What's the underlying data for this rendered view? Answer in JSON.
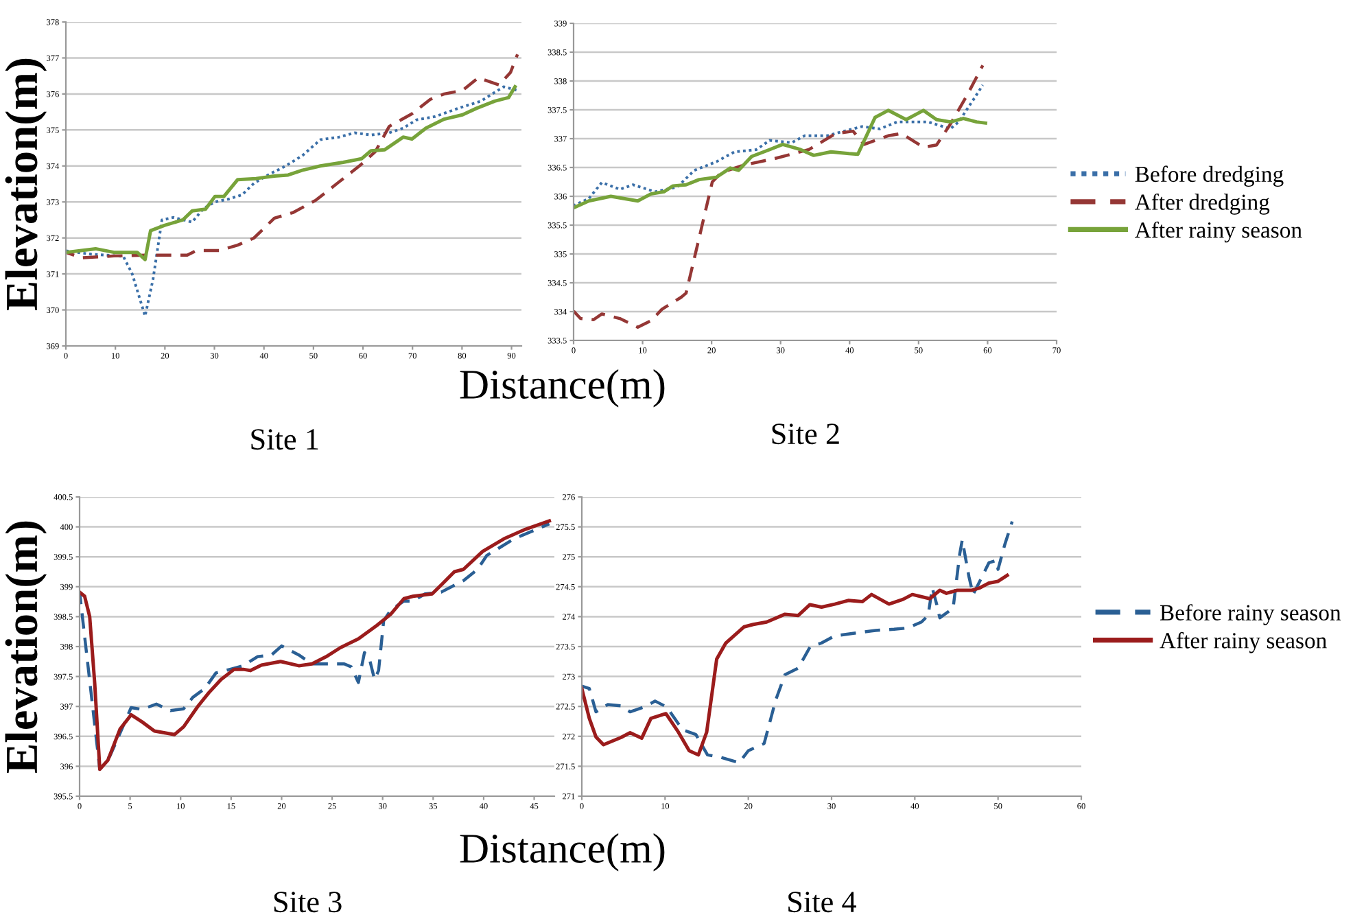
{
  "chart_data": [
    {
      "type": "line",
      "title": "Site 1",
      "ylabel": "Elevation(m)",
      "xlabel": "Distance(m)",
      "xlim": [
        0,
        92
      ],
      "xticks": [
        0,
        10,
        20,
        30,
        40,
        50,
        60,
        70,
        80,
        90
      ],
      "ylim": [
        369,
        378
      ],
      "yticks": [
        369,
        370,
        371,
        372,
        373,
        374,
        375,
        376,
        377,
        378
      ],
      "grid": "y",
      "legend": false,
      "series": [
        {
          "color": "#3a6fa8",
          "line_style": "dotted",
          "x": [
            0,
            5.1,
            11.6,
            13.4,
            16.0,
            17.6,
            19.4,
            21.8,
            25.5,
            27.8,
            30.1,
            32.9,
            35.6,
            38.0,
            41.2,
            44.0,
            47.7,
            51.4,
            55.1,
            58.3,
            61.6,
            65.3,
            68.1,
            70.8,
            74.5,
            79.2,
            83.8,
            88.4,
            91.2
          ],
          "values": [
            371.64,
            371.55,
            371.49,
            371.0,
            369.83,
            370.85,
            372.5,
            372.57,
            372.44,
            372.82,
            373.0,
            373.08,
            373.2,
            373.52,
            373.78,
            373.97,
            374.28,
            374.73,
            374.8,
            374.92,
            374.86,
            374.92,
            375.05,
            375.28,
            375.37,
            375.6,
            375.8,
            376.2,
            376.1
          ]
        },
        {
          "color": "#953735",
          "line_style": "dashed",
          "x": [
            0,
            3.2,
            9.7,
            16.2,
            24.5,
            26.4,
            31.0,
            34.7,
            38.0,
            42.1,
            45.8,
            50.5,
            55.1,
            59.7,
            62.5,
            65.3,
            69.9,
            73.6,
            76.4,
            80.1,
            83.3,
            87.5,
            89.8,
            91.2
          ],
          "values": [
            371.6,
            371.45,
            371.5,
            371.52,
            371.52,
            371.65,
            371.65,
            371.8,
            372.0,
            372.55,
            372.7,
            373.05,
            373.55,
            374.05,
            374.4,
            375.1,
            375.45,
            375.85,
            376.0,
            376.1,
            376.45,
            376.25,
            376.6,
            377.1
          ]
        },
        {
          "color": "#77a33a",
          "line_style": "solid",
          "x": [
            0,
            6.0,
            9.7,
            14.4,
            16.0,
            17.1,
            19.9,
            23.6,
            25.5,
            28.2,
            30.1,
            31.9,
            34.7,
            38.4,
            42.1,
            44.9,
            47.7,
            51.4,
            56.0,
            59.7,
            61.6,
            64.4,
            68.1,
            69.9,
            72.7,
            76.4,
            80.1,
            82.9,
            86.6,
            89.4,
            90.7
          ],
          "values": [
            371.6,
            371.7,
            371.6,
            371.6,
            371.4,
            372.2,
            372.35,
            372.5,
            372.75,
            372.8,
            373.15,
            373.15,
            373.62,
            373.65,
            373.72,
            373.75,
            373.88,
            374.0,
            374.1,
            374.2,
            374.42,
            374.45,
            374.8,
            374.75,
            375.05,
            375.3,
            375.42,
            375.6,
            375.8,
            375.9,
            376.2
          ]
        }
      ]
    },
    {
      "type": "line",
      "title": "Site 2",
      "xlim": [
        0,
        70
      ],
      "xticks": [
        0,
        10,
        20,
        30,
        40,
        50,
        60,
        70
      ],
      "ylim": [
        333.5,
        339
      ],
      "yticks": [
        333.5,
        334,
        334.5,
        335,
        335.5,
        336,
        336.5,
        337,
        337.5,
        338,
        338.5,
        339
      ],
      "grid": "y",
      "legend": "right",
      "series": [
        {
          "name": "Before dredging",
          "color": "#3a6fa8",
          "line_style": "dotted",
          "x": [
            0,
            2.2,
            4.1,
            6.7,
            8.6,
            11.8,
            15.0,
            17.5,
            20.7,
            23.3,
            26.5,
            28.4,
            31.6,
            33.5,
            36.7,
            39.2,
            41.8,
            44.4,
            46.9,
            51.4,
            54.6,
            55.8,
            57.8,
            59.3
          ],
          "values": [
            335.84,
            335.96,
            336.24,
            336.12,
            336.2,
            336.08,
            336.16,
            336.45,
            336.6,
            336.77,
            336.81,
            336.97,
            336.93,
            337.05,
            337.05,
            337.13,
            337.21,
            337.17,
            337.29,
            337.29,
            337.17,
            337.29,
            337.65,
            337.93
          ]
        },
        {
          "name": "After dredging",
          "color": "#953735",
          "line_style": "dashed",
          "x": [
            0,
            1,
            2.9,
            4.1,
            6.7,
            9.3,
            11.2,
            12.8,
            15.6,
            16.3,
            18.2,
            20.1,
            21.4,
            24.6,
            29.0,
            34.1,
            38.0,
            40.5,
            42.1,
            45.6,
            47.5,
            50.7,
            52.6,
            54.6,
            57.1,
            59.3
          ],
          "values": [
            334.01,
            333.88,
            333.86,
            333.96,
            333.88,
            333.73,
            333.84,
            334.04,
            334.25,
            334.32,
            335.28,
            336.25,
            336.41,
            336.54,
            336.65,
            336.81,
            337.09,
            337.13,
            336.9,
            337.05,
            337.09,
            336.85,
            336.89,
            337.25,
            337.77,
            338.27
          ]
        },
        {
          "name": "After rainy season",
          "color": "#77a33a",
          "line_style": "solid",
          "x": [
            0,
            2.2,
            5.4,
            9.3,
            11.2,
            13.1,
            14.4,
            16.3,
            18.2,
            20.7,
            22.7,
            23.9,
            25.8,
            28.4,
            30.3,
            32.9,
            34.8,
            37.3,
            39.9,
            41.2,
            43.7,
            45.6,
            48.2,
            50.7,
            52.6,
            54.6,
            56.5,
            58.4,
            59.7
          ],
          "values": [
            335.8,
            335.92,
            336.0,
            335.92,
            336.04,
            336.08,
            336.18,
            336.2,
            336.29,
            336.33,
            336.49,
            336.45,
            336.69,
            336.81,
            336.9,
            336.81,
            336.71,
            336.77,
            336.74,
            336.73,
            337.37,
            337.49,
            337.33,
            337.49,
            337.33,
            337.29,
            337.35,
            337.29,
            337.27
          ]
        }
      ]
    },
    {
      "type": "line",
      "title": "Site 3",
      "ylabel": "Elevation(m)",
      "xlabel": "Distance(m)",
      "xlim": [
        0,
        47
      ],
      "xticks": [
        0,
        5,
        10,
        15,
        20,
        25,
        30,
        35,
        40,
        45
      ],
      "ylim": [
        395.5,
        400.5
      ],
      "yticks": [
        395.5,
        396,
        396.5,
        397,
        397.5,
        398,
        398.5,
        399,
        399.5,
        400,
        400.5
      ],
      "grid": "y",
      "legend": false,
      "series": [
        {
          "color": "#2a5f94",
          "line_style": "dashed",
          "x": [
            0,
            2,
            3,
            4,
            5.1,
            6.2,
            7.6,
            9,
            10.3,
            11.2,
            12.4,
            13.5,
            14.9,
            16.2,
            17.6,
            19,
            20,
            21.7,
            23,
            24.4,
            26.2,
            26.9,
            27.6,
            28.2,
            28.7,
            29.2,
            29.6,
            30.1,
            30.8,
            32.1,
            33,
            34.2,
            35.8,
            36.7,
            38,
            39.4,
            40.3,
            43,
            46.5
          ],
          "values": [
            398.91,
            395.95,
            396.17,
            396.55,
            396.98,
            396.95,
            397.04,
            396.93,
            396.96,
            397.15,
            397.3,
            397.56,
            397.62,
            397.68,
            397.83,
            397.86,
            398.01,
            397.86,
            397.71,
            397.71,
            397.71,
            397.66,
            397.4,
            397.9,
            397.79,
            397.45,
            397.6,
            398.43,
            398.61,
            398.76,
            398.76,
            398.88,
            398.91,
            398.99,
            399.1,
            399.29,
            399.52,
            399.8,
            400.05
          ]
        },
        {
          "color": "#9b1c1c",
          "line_style": "solid",
          "x": [
            0,
            0.5,
            1,
            1.5,
            2,
            2.8,
            4,
            5.1,
            6.2,
            7.4,
            9.4,
            10.3,
            11.7,
            12.8,
            14,
            15.3,
            16.2,
            16.9,
            18,
            19.9,
            21.7,
            23,
            24.4,
            25.8,
            27.6,
            29.4,
            30.8,
            32.1,
            33,
            34.9,
            35.8,
            37.1,
            38,
            39.9,
            42,
            44,
            46.5
          ],
          "values": [
            398.91,
            398.84,
            398.5,
            397.38,
            395.95,
            396.1,
            396.62,
            396.86,
            396.74,
            396.59,
            396.53,
            396.66,
            397.0,
            397.23,
            397.45,
            397.62,
            397.62,
            397.6,
            397.69,
            397.75,
            397.68,
            397.71,
            397.83,
            397.98,
            398.13,
            398.35,
            398.54,
            398.8,
            398.84,
            398.88,
            399.03,
            399.25,
            399.29,
            399.59,
            399.8,
            399.95,
            400.1
          ]
        }
      ]
    },
    {
      "type": "line",
      "title": "Site 4",
      "xlim": [
        0,
        60
      ],
      "xticks": [
        0,
        10,
        20,
        30,
        40,
        50,
        60
      ],
      "ylim": [
        271,
        276
      ],
      "yticks": [
        271,
        271.5,
        272,
        272.5,
        273,
        273.5,
        274,
        274.5,
        275,
        275.5,
        276
      ],
      "grid": "y",
      "legend": "right",
      "series": [
        {
          "name": "Before rainy season",
          "color": "#2a5f94",
          "line_style": "dashed",
          "x": [
            0,
            0.9,
            1.7,
            3.1,
            4.7,
            5.8,
            7.5,
            8.8,
            10.2,
            12.1,
            13.7,
            15.1,
            16.7,
            18.9,
            20,
            21.9,
            23.3,
            24.4,
            26,
            27.4,
            28.8,
            30.4,
            32.6,
            35.3,
            37.5,
            39.1,
            40.8,
            41.6,
            42.1,
            42.7,
            43,
            44.6,
            45.4,
            45.7,
            46.5,
            47,
            47.8,
            48.9,
            49.8,
            50,
            50.8,
            51.7
          ],
          "values": [
            272.84,
            272.8,
            272.41,
            272.53,
            272.51,
            272.41,
            272.49,
            272.59,
            272.49,
            272.11,
            272.03,
            271.69,
            271.65,
            271.56,
            271.76,
            271.88,
            272.61,
            273.03,
            273.14,
            273.49,
            273.56,
            273.68,
            273.72,
            273.77,
            273.79,
            273.81,
            273.91,
            274.02,
            274.48,
            274.17,
            273.98,
            274.14,
            275.05,
            275.28,
            274.67,
            274.37,
            274.59,
            274.9,
            274.94,
            274.79,
            275.2,
            275.59
          ]
        },
        {
          "name": "After rainy season",
          "color": "#9b1c1c",
          "line_style": "solid",
          "x": [
            0,
            0.9,
            1.7,
            2.6,
            4.7,
            5.8,
            7.2,
            8.3,
            10.1,
            11.6,
            12.9,
            14,
            15,
            16.2,
            17.3,
            19.5,
            20.6,
            22.2,
            24.4,
            26,
            27.4,
            28.8,
            30.4,
            32,
            33.7,
            34.8,
            36.9,
            38.6,
            39.7,
            41.8,
            43,
            43.8,
            45.1,
            46.8,
            47.8,
            48.9,
            50,
            51.1
          ],
          "values": [
            272.8,
            272.3,
            271.99,
            271.86,
            271.98,
            272.06,
            271.97,
            272.3,
            272.38,
            272.07,
            271.76,
            271.69,
            272.07,
            273.29,
            273.56,
            273.83,
            273.87,
            273.91,
            274.04,
            274.02,
            274.2,
            274.16,
            274.21,
            274.27,
            274.25,
            274.37,
            274.21,
            274.29,
            274.37,
            274.3,
            274.44,
            274.39,
            274.44,
            274.44,
            274.48,
            274.56,
            274.59,
            274.69
          ]
        }
      ]
    }
  ]
}
